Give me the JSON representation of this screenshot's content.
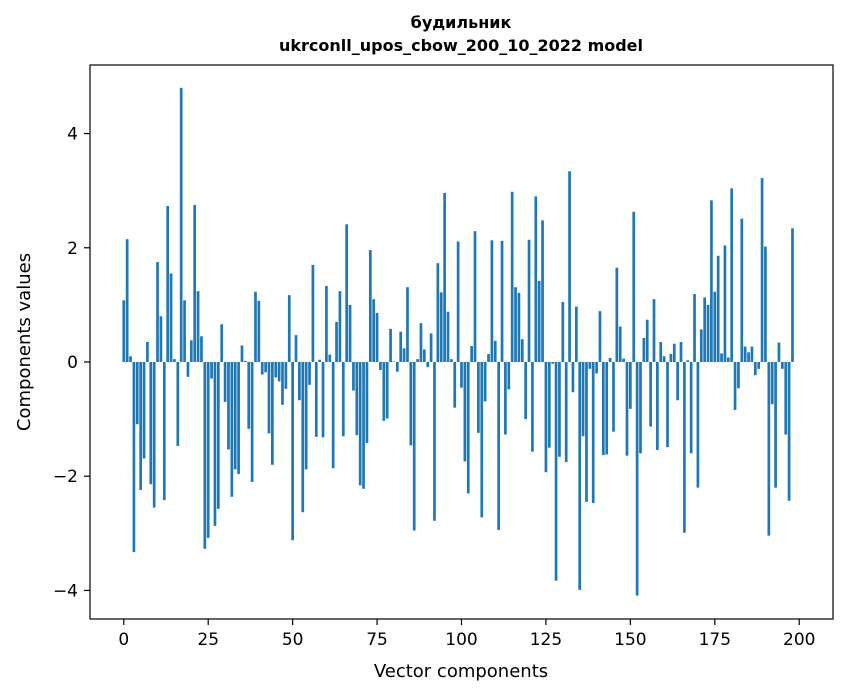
{
  "chart_data": {
    "type": "bar",
    "title_line1": "будильник",
    "title_line2": "ukrconll_upos_cbow_200_10_2022 model",
    "xlabel": "Vector components",
    "ylabel": "Components values",
    "xlim": [
      -10,
      210
    ],
    "ylim": [
      -4.5,
      5.2
    ],
    "xticks": [
      0,
      25,
      50,
      75,
      100,
      125,
      150,
      175,
      200
    ],
    "xtick_labels": [
      "0",
      "25",
      "50",
      "75",
      "100",
      "125",
      "150",
      "175",
      "200"
    ],
    "yticks": [
      -4,
      -2,
      0,
      2,
      4
    ],
    "ytick_labels": [
      "−4",
      "−2",
      "0",
      "2",
      "4"
    ],
    "bar_color": "#1f77b4",
    "values": [
      1.08,
      2.15,
      0.1,
      -3.33,
      -1.09,
      -2.24,
      -1.69,
      0.35,
      -2.14,
      -2.55,
      1.75,
      0.8,
      -2.42,
      2.73,
      1.55,
      0.05,
      -1.47,
      4.8,
      1.08,
      -0.26,
      0.38,
      2.75,
      1.24,
      0.45,
      -3.27,
      -3.08,
      -0.29,
      -2.87,
      -2.57,
      0.66,
      -0.7,
      -1.53,
      -2.36,
      -1.88,
      -1.96,
      0.29,
      0.02,
      -1.17,
      -2.1,
      1.23,
      1.07,
      -0.22,
      -0.18,
      -1.25,
      -1.8,
      -0.27,
      -0.34,
      -0.75,
      -0.47,
      1.17,
      -3.12,
      0.47,
      -0.67,
      -2.63,
      -1.88,
      -0.4,
      1.7,
      -1.31,
      0.04,
      -1.32,
      1.33,
      0.13,
      -1.86,
      0.7,
      1.24,
      -1.3,
      2.41,
      1.0,
      -0.5,
      -1.28,
      -2.16,
      -2.22,
      -1.42,
      1.96,
      1.1,
      0.86,
      -0.14,
      -1.03,
      -0.99,
      0.58,
      0.01,
      -0.17,
      0.53,
      0.24,
      1.31,
      -1.46,
      -2.95,
      0.05,
      0.68,
      0.22,
      -0.09,
      0.5,
      -2.78,
      1.73,
      1.22,
      2.96,
      0.88,
      0.05,
      -0.8,
      2.11,
      -0.45,
      -1.74,
      -2.3,
      0.28,
      2.29,
      -1.24,
      -2.72,
      -0.69,
      0.14,
      2.13,
      0.37,
      -2.94,
      2.12,
      -1.27,
      -0.48,
      2.98,
      1.31,
      1.21,
      0.4,
      -1.0,
      2.14,
      -1.57,
      2.9,
      1.42,
      2.48,
      -1.93,
      -1.5,
      -0.03,
      -3.83,
      -1.66,
      1.05,
      -1.75,
      3.34,
      -0.53,
      0.97,
      -3.99,
      -1.3,
      -2.45,
      -0.12,
      -2.47,
      -0.2,
      0.89,
      -1.63,
      -1.62,
      0.07,
      -1.22,
      1.65,
      0.62,
      0.06,
      -1.64,
      -0.82,
      2.63,
      -4.09,
      -1.6,
      0.42,
      0.74,
      -1.13,
      1.1,
      -1.54,
      0.35,
      0.1,
      -1.49,
      0.14,
      0.32,
      -0.67,
      0.35,
      -2.99,
      0.03,
      -1.6,
      1.19,
      -2.2,
      0.57,
      1.13,
      1.0,
      2.83,
      1.23,
      1.86,
      0.15,
      2.04,
      0.08,
      3.04,
      -0.84,
      -0.46,
      2.51,
      0.27,
      0.17,
      0.27,
      -0.23,
      -0.12,
      3.22,
      2.02,
      -3.04,
      -0.74,
      -2.2,
      0.34,
      -0.12,
      -1.27,
      -2.43,
      2.34
    ]
  }
}
